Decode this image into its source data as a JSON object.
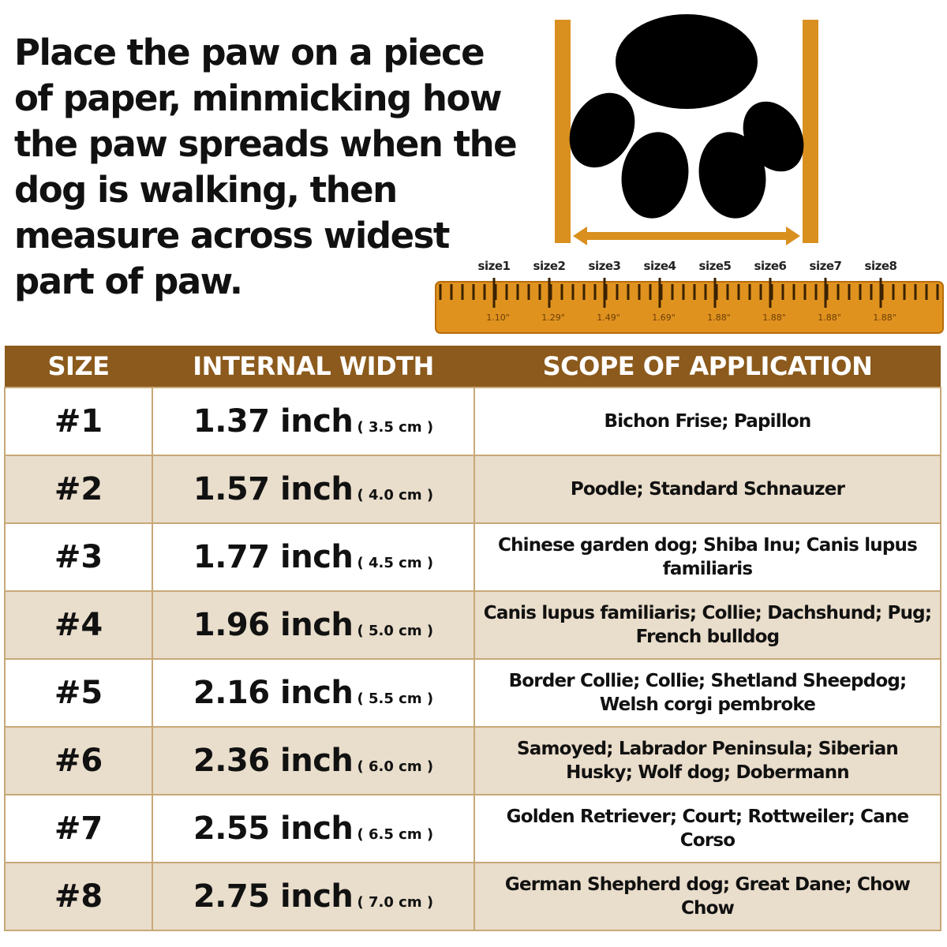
{
  "instructions": "Place the paw on a piece of paper, minmicking how the paw spreads when the dog is walking, then measure across widest part of paw.",
  "ruler": {
    "size_labels": [
      "size1",
      "size2",
      "size3",
      "size4",
      "size5",
      "size6",
      "size7",
      "size8"
    ],
    "values": [
      "1.10\"",
      "1.29\"",
      "1.49\"",
      "1.69\"",
      "1.88\"",
      "1.88\"",
      "1.88\"",
      "1.88\""
    ]
  },
  "colors": {
    "header": "#8b5a1c",
    "row_alt": "#e9ddcb",
    "ruler": "#e0921f",
    "paw": "#000000"
  },
  "table": {
    "headers": [
      "SIZE",
      "INTERNAL WIDTH",
      "SCOPE OF APPLICATION"
    ],
    "rows": [
      {
        "size": "#1",
        "width": "1.37 inch",
        "cm": "( 3.5 cm )",
        "scope": "Bichon Frise; Papillon"
      },
      {
        "size": "#2",
        "width": "1.57 inch",
        "cm": "( 4.0 cm )",
        "scope": "Poodle; Standard Schnauzer"
      },
      {
        "size": "#3",
        "width": "1.77 inch",
        "cm": "( 4.5 cm )",
        "scope": "Chinese garden dog; Shiba Inu; Canis lupus familiaris"
      },
      {
        "size": "#4",
        "width": "1.96 inch",
        "cm": "( 5.0 cm )",
        "scope": "Canis lupus familiaris; Collie; Dachshund; Pug; French bulldog"
      },
      {
        "size": "#5",
        "width": "2.16 inch",
        "cm": "( 5.5 cm )",
        "scope": "Border Collie; Collie; Shetland Sheepdog; Welsh corgi pembroke"
      },
      {
        "size": "#6",
        "width": "2.36 inch",
        "cm": "( 6.0 cm )",
        "scope": "Samoyed; Labrador Peninsula; Siberian Husky; Wolf dog; Dobermann"
      },
      {
        "size": "#7",
        "width": "2.55 inch",
        "cm": "( 6.5 cm )",
        "scope": "Golden Retriever; Court; Rottweiler; Cane Corso"
      },
      {
        "size": "#8",
        "width": "2.75 inch",
        "cm": "( 7.0 cm )",
        "scope": "German Shepherd dog; Great Dane; Chow Chow"
      }
    ]
  }
}
